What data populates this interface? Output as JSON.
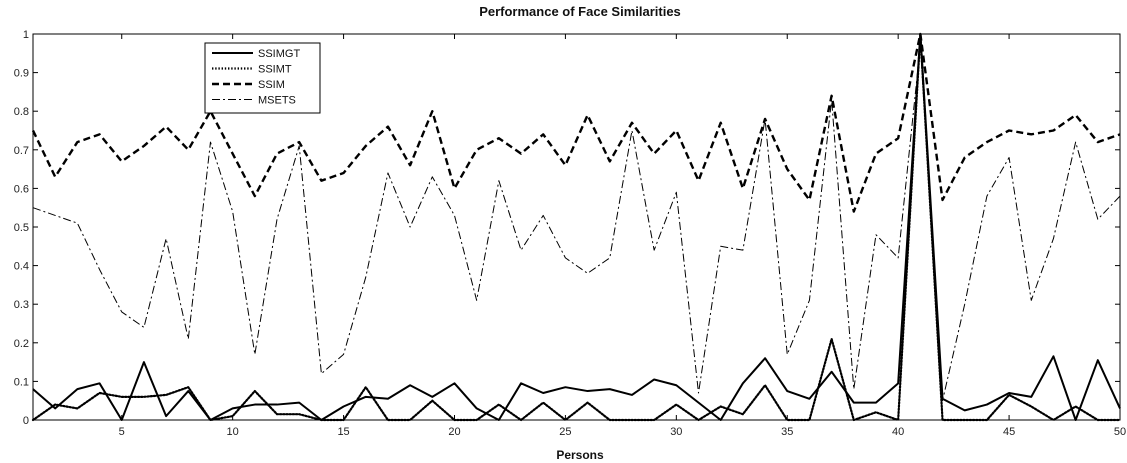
{
  "chart_data": {
    "type": "line",
    "title": "Performance of Face Similarities",
    "xlabel": "Persons",
    "ylabel": "",
    "xlim": [
      1,
      50
    ],
    "ylim": [
      0,
      1
    ],
    "x_ticks": [
      5,
      10,
      15,
      20,
      25,
      30,
      35,
      40,
      45,
      50
    ],
    "y_ticks": [
      0,
      0.1,
      0.2,
      0.3,
      0.4,
      0.5,
      0.6,
      0.7,
      0.8,
      0.9,
      1
    ],
    "y_tick_labels": [
      "0",
      "0.1",
      "0.2",
      "0.3",
      "0.4",
      "0.5",
      "0.6",
      "0.7",
      "0.8",
      "0.9",
      "1"
    ],
    "grid": false,
    "legend_position": "top-left",
    "x": [
      1,
      2,
      3,
      4,
      5,
      6,
      7,
      8,
      9,
      10,
      11,
      12,
      13,
      14,
      15,
      16,
      17,
      18,
      19,
      20,
      21,
      22,
      23,
      24,
      25,
      26,
      27,
      28,
      29,
      30,
      31,
      32,
      33,
      34,
      35,
      36,
      37,
      38,
      39,
      40,
      41,
      42,
      43,
      44,
      45,
      46,
      47,
      48,
      49,
      50
    ],
    "series": [
      {
        "name": "SSIMGT",
        "style": "solid",
        "color": "#000000",
        "values": [
          0.08,
          0.03,
          0.08,
          0.095,
          0.0,
          0.15,
          0.01,
          0.075,
          0.0,
          0.03,
          0.04,
          0.04,
          0.045,
          0.0,
          0.035,
          0.06,
          0.055,
          0.09,
          0.06,
          0.095,
          0.03,
          0.0,
          0.095,
          0.07,
          0.085,
          0.075,
          0.08,
          0.065,
          0.105,
          0.09,
          0.045,
          0.0,
          0.095,
          0.16,
          0.075,
          0.055,
          0.125,
          0.045,
          0.045,
          0.095,
          1.0,
          0.055,
          0.025,
          0.04,
          0.07,
          0.06,
          0.165,
          0.0,
          0.155,
          0.03
        ]
      },
      {
        "name": "SSIMT",
        "style": "dotted",
        "color": "#000000",
        "values": [
          0.0,
          0.04,
          0.03,
          0.07,
          0.06,
          0.06,
          0.065,
          0.085,
          0.0,
          0.01,
          0.075,
          0.015,
          0.015,
          0.0,
          0.0,
          0.085,
          0.0,
          0.0,
          0.05,
          0.0,
          0.0,
          0.04,
          0.0,
          0.045,
          0.0,
          0.045,
          0.0,
          0.0,
          0.0,
          0.04,
          0.0,
          0.035,
          0.015,
          0.09,
          0.0,
          0.0,
          0.21,
          0.0,
          0.02,
          0.0,
          1.0,
          0.0,
          0.0,
          0.0,
          0.065,
          0.035,
          0.0,
          0.035,
          0.0,
          0.0
        ]
      },
      {
        "name": "SSIM",
        "style": "dashed",
        "color": "#000000",
        "values": [
          0.75,
          0.63,
          0.72,
          0.74,
          0.67,
          0.71,
          0.76,
          0.7,
          0.8,
          0.69,
          0.58,
          0.69,
          0.72,
          0.62,
          0.64,
          0.71,
          0.76,
          0.66,
          0.8,
          0.6,
          0.7,
          0.73,
          0.69,
          0.74,
          0.66,
          0.79,
          0.67,
          0.77,
          0.69,
          0.75,
          0.62,
          0.77,
          0.6,
          0.78,
          0.65,
          0.57,
          0.84,
          0.54,
          0.69,
          0.73,
          1.0,
          0.57,
          0.68,
          0.72,
          0.75,
          0.74,
          0.75,
          0.79,
          0.72,
          0.74
        ]
      },
      {
        "name": "MSETS",
        "style": "dashdot",
        "color": "#000000",
        "values": [
          0.55,
          0.53,
          0.51,
          0.39,
          0.28,
          0.24,
          0.47,
          0.21,
          0.72,
          0.54,
          0.17,
          0.52,
          0.71,
          0.12,
          0.17,
          0.37,
          0.64,
          0.5,
          0.63,
          0.53,
          0.31,
          0.62,
          0.44,
          0.53,
          0.42,
          0.38,
          0.42,
          0.75,
          0.44,
          0.59,
          0.07,
          0.45,
          0.44,
          0.78,
          0.17,
          0.31,
          0.83,
          0.08,
          0.48,
          0.42,
          0.97,
          0.05,
          0.3,
          0.58,
          0.68,
          0.31,
          0.47,
          0.72,
          0.52,
          0.58
        ]
      }
    ]
  }
}
